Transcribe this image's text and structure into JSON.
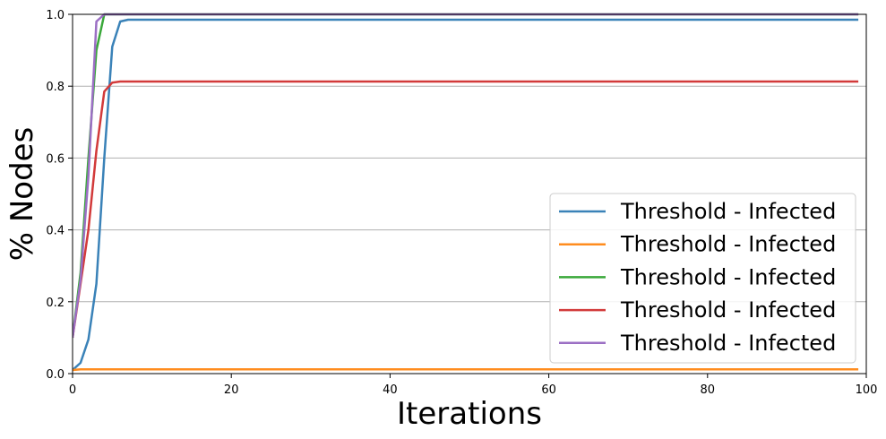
{
  "chart_data": {
    "type": "line",
    "title": "",
    "xlabel": "Iterations",
    "ylabel": "% Nodes",
    "xlim": [
      0,
      100
    ],
    "ylim": [
      0,
      1
    ],
    "xticks": [
      0,
      20,
      40,
      60,
      80,
      100
    ],
    "yticks": [
      0.0,
      0.2,
      0.4,
      0.6,
      0.8,
      1.0
    ],
    "ytick_labels": [
      "0.0",
      "0.2",
      "0.4",
      "0.6",
      "0.8",
      "1.0"
    ],
    "grid": "horizontal",
    "legend_position": "lower-right",
    "series": [
      {
        "name": "Threshold - Infected",
        "color": "#3a82b8",
        "x": [
          0,
          1,
          2,
          3,
          4,
          5,
          6,
          7,
          8,
          99
        ],
        "y": [
          0.01,
          0.03,
          0.095,
          0.25,
          0.6,
          0.91,
          0.98,
          0.985,
          0.985,
          0.985
        ]
      },
      {
        "name": "Threshold - Infected",
        "color": "#ff8c1e",
        "x": [
          0,
          1,
          99
        ],
        "y": [
          0.01,
          0.012,
          0.012
        ]
      },
      {
        "name": "Threshold - Infected",
        "color": "#3aa83a",
        "x": [
          0,
          1,
          2,
          3,
          4,
          99
        ],
        "y": [
          0.1,
          0.28,
          0.6,
          0.9,
          1.0,
          1.0
        ]
      },
      {
        "name": "Threshold - Infected",
        "color": "#d23a3a",
        "x": [
          0,
          1,
          2,
          3,
          4,
          5,
          6,
          99
        ],
        "y": [
          0.1,
          0.25,
          0.4,
          0.62,
          0.785,
          0.81,
          0.813,
          0.813
        ]
      },
      {
        "name": "Threshold - Infected",
        "color": "#9b6fc4",
        "x": [
          0,
          1,
          2,
          3,
          4,
          99
        ],
        "y": [
          0.1,
          0.26,
          0.55,
          0.98,
          1.0,
          1.0
        ]
      }
    ]
  }
}
